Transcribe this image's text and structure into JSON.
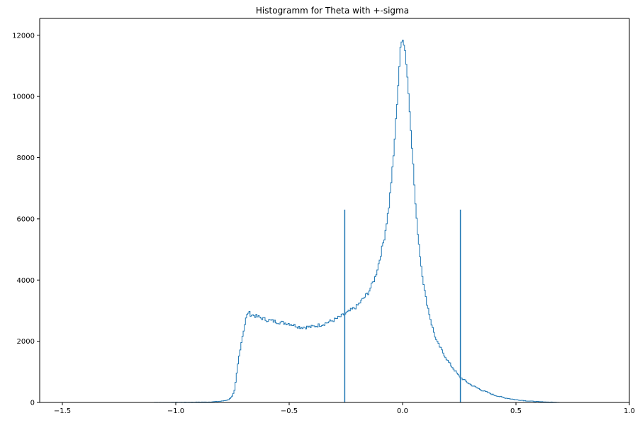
{
  "chart_data": {
    "type": "histogram",
    "title": "Histogramm for Theta with +-sigma",
    "xlabel": "",
    "ylabel": "",
    "xlim": [
      -1.6,
      1.0
    ],
    "ylim": [
      0,
      12550
    ],
    "xticks": [
      -1.5,
      -1.0,
      -0.5,
      0.0,
      0.5,
      1.0
    ],
    "xtick_labels": [
      "−1.5",
      "−1.0",
      "−0.5",
      "0.0",
      "0.5",
      "1.0"
    ],
    "yticks": [
      0,
      2000,
      4000,
      6000,
      8000,
      10000,
      12000
    ],
    "ytick_labels": [
      "0",
      "2000",
      "4000",
      "6000",
      "8000",
      "10000",
      "12000"
    ],
    "grid": false,
    "series_color": "#1f77b4",
    "histogram_profile_points": [
      [
        -1.13,
        0
      ],
      [
        -1.0,
        5
      ],
      [
        -0.85,
        15
      ],
      [
        -0.8,
        40
      ],
      [
        -0.77,
        80
      ],
      [
        -0.75,
        200
      ],
      [
        -0.74,
        400
      ],
      [
        -0.725,
        1300
      ],
      [
        -0.715,
        1800
      ],
      [
        -0.705,
        2200
      ],
      [
        -0.69,
        2750
      ],
      [
        -0.68,
        2950
      ],
      [
        -0.67,
        2880
      ],
      [
        -0.65,
        2830
      ],
      [
        -0.6,
        2700
      ],
      [
        -0.55,
        2630
      ],
      [
        -0.5,
        2580
      ],
      [
        -0.45,
        2460
      ],
      [
        -0.4,
        2470
      ],
      [
        -0.35,
        2560
      ],
      [
        -0.3,
        2700
      ],
      [
        -0.25,
        2900
      ],
      [
        -0.2,
        3150
      ],
      [
        -0.15,
        3600
      ],
      [
        -0.12,
        4100
      ],
      [
        -0.1,
        4700
      ],
      [
        -0.08,
        5400
      ],
      [
        -0.06,
        6400
      ],
      [
        -0.04,
        8000
      ],
      [
        -0.02,
        10300
      ],
      [
        -0.01,
        11500
      ],
      [
        0.0,
        11950
      ],
      [
        0.01,
        11600
      ],
      [
        0.02,
        10800
      ],
      [
        0.04,
        8600
      ],
      [
        0.06,
        6100
      ],
      [
        0.08,
        4600
      ],
      [
        0.1,
        3500
      ],
      [
        0.13,
        2500
      ],
      [
        0.15,
        2000
      ],
      [
        0.2,
        1350
      ],
      [
        0.25,
        850
      ],
      [
        0.3,
        580
      ],
      [
        0.35,
        400
      ],
      [
        0.4,
        250
      ],
      [
        0.45,
        150
      ],
      [
        0.5,
        90
      ],
      [
        0.55,
        50
      ],
      [
        0.6,
        25
      ],
      [
        0.7,
        0
      ]
    ],
    "vlines": [
      {
        "x": -0.255,
        "ymax": 6300
      },
      {
        "x": 0.255,
        "ymax": 6300
      }
    ]
  }
}
